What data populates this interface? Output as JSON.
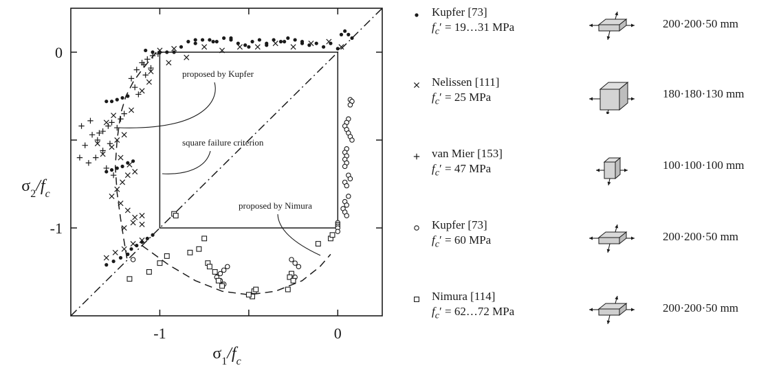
{
  "chart_data": {
    "type": "scatter",
    "title": "",
    "xlabel": "σ1/fc",
    "ylabel": "σ2/fc",
    "xlim": [
      -1.5,
      0.25
    ],
    "ylim": [
      -1.5,
      0.25
    ],
    "xticks": [
      -1,
      0
    ],
    "yticks": [
      -1,
      0
    ],
    "xtick_labels": [
      "-1",
      "0"
    ],
    "ytick_labels": [
      "-1",
      "0"
    ],
    "grid": false,
    "legend_position": "right",
    "annotations": [
      {
        "text": "proposed by Kupfer",
        "target": "kupfer-curve"
      },
      {
        "text": "square failure criterion",
        "target": "square"
      },
      {
        "text": "proposed by Nimura",
        "target": "nimura-curve"
      }
    ],
    "lines": [
      {
        "name": "diagonal",
        "style": "dash-dot",
        "x": [
          -1.5,
          0.25
        ],
        "y": [
          -1.5,
          0.25
        ]
      },
      {
        "name": "square failure criterion",
        "style": "solid",
        "x": [
          -1,
          0,
          0,
          -1,
          -1
        ],
        "y": [
          0,
          0,
          -1,
          -1,
          0
        ]
      },
      {
        "name": "proposed by Kupfer",
        "style": "dashed",
        "x": [
          -1.02,
          -1.06,
          -1.1,
          -1.15,
          -1.19,
          -1.22,
          -1.24,
          -1.25,
          -1.24,
          -1.22,
          -1.2,
          -1.18
        ],
        "y": [
          0.0,
          -0.05,
          -0.1,
          -0.17,
          -0.25,
          -0.35,
          -0.5,
          -0.65,
          -0.8,
          -0.95,
          -1.08,
          -1.2
        ]
      },
      {
        "name": "proposed by Nimura",
        "style": "dashed",
        "x": [
          -1.1,
          -0.95,
          -0.8,
          -0.65,
          -0.5,
          -0.35,
          -0.2,
          -0.1,
          -0.04
        ],
        "y": [
          -1.1,
          -1.21,
          -1.3,
          -1.36,
          -1.38,
          -1.36,
          -1.3,
          -1.22,
          -1.15
        ]
      }
    ],
    "series": [
      {
        "name": "Kupfer [73]",
        "marker": "dot",
        "x": [
          -1.08,
          -1.04,
          -1.0,
          -0.96,
          -0.92,
          -0.88,
          -0.84,
          -0.8,
          -0.76,
          -0.72,
          -0.68,
          -0.64,
          -0.6,
          -0.56,
          -0.52,
          -0.48,
          -0.44,
          -0.4,
          -0.36,
          -0.32,
          -0.28,
          -0.24,
          -0.2,
          -0.16,
          -0.12,
          -0.08,
          -0.04,
          0.0,
          0.02,
          0.04,
          0.06,
          0.08,
          -1.3,
          -1.27,
          -1.24,
          -1.21,
          -1.18,
          -1.3,
          -1.27,
          -1.24,
          -1.21,
          -1.18,
          -1.15,
          -1.3,
          -1.26,
          -1.22,
          -1.18,
          -1.16,
          -1.13,
          -1.1,
          -1.07,
          -1.04,
          -0.8,
          -0.7,
          -0.6,
          -0.4,
          -0.3,
          -0.2,
          -0.5
        ],
        "y": [
          0.01,
          0.0,
          0.0,
          0.0,
          0.0,
          0.03,
          0.06,
          0.07,
          0.07,
          0.07,
          0.06,
          0.08,
          0.08,
          0.05,
          0.04,
          0.06,
          0.07,
          0.05,
          0.07,
          0.06,
          0.08,
          0.07,
          0.06,
          0.04,
          0.05,
          0.03,
          0.05,
          0.02,
          0.1,
          0.12,
          0.1,
          0.08,
          -0.28,
          -0.28,
          -0.27,
          -0.26,
          -0.25,
          -0.68,
          -0.67,
          -0.66,
          -0.65,
          -0.63,
          -0.62,
          -1.21,
          -1.19,
          -1.17,
          -1.15,
          -1.12,
          -1.1,
          -1.08,
          -1.06,
          -1.04,
          0.05,
          0.06,
          0.07,
          0.04,
          0.06,
          0.05,
          0.03
        ]
      },
      {
        "name": "Nelissen [111]",
        "marker": "x",
        "x": [
          -1.35,
          -1.3,
          -1.26,
          -1.24,
          -1.2,
          -1.16,
          -1.1,
          -1.06,
          -1.27,
          -1.24,
          -1.21,
          -1.18,
          -1.22,
          -1.18,
          -1.14,
          -1.1,
          -1.3,
          -1.25,
          -1.2,
          -1.15,
          -1.1,
          -1.2,
          -1.15,
          -1.1,
          -1.32,
          -1.27,
          -1.22,
          -1.17,
          -1.14,
          -1.05,
          -0.95,
          -0.85,
          -0.75,
          -0.65,
          -0.55,
          -0.45,
          -0.35,
          -0.25,
          -0.15,
          -0.05,
          0.02,
          -1.0,
          -0.92
        ],
        "y": [
          -0.52,
          -0.4,
          -0.36,
          -0.5,
          -0.47,
          -0.33,
          -0.22,
          -0.17,
          -0.82,
          -0.78,
          -0.74,
          -0.7,
          -0.86,
          -0.9,
          -0.94,
          -0.98,
          -1.17,
          -1.14,
          -1.12,
          -1.09,
          -1.07,
          -1.0,
          -0.97,
          -0.93,
          -0.58,
          -0.54,
          -0.6,
          -0.64,
          -0.68,
          -0.11,
          -0.06,
          -0.03,
          0.03,
          0.01,
          0.03,
          0.03,
          0.05,
          0.03,
          0.05,
          0.06,
          0.03,
          0.01,
          0.02
        ]
      },
      {
        "name": "van Mier [153]",
        "marker": "plus",
        "x": [
          -1.45,
          -1.42,
          -1.38,
          -1.35,
          -1.32,
          -1.29,
          -1.27,
          -1.24,
          -1.22,
          -1.2,
          -1.4,
          -1.36,
          -1.32,
          -1.28,
          -1.44,
          -1.39,
          -1.34,
          -1.3,
          -1.26,
          -1.13,
          -1.1,
          -1.07,
          -1.04,
          -1.01,
          -1.16,
          -1.05,
          -1.08,
          -1.14,
          -1.12,
          -1.09
        ],
        "y": [
          -0.6,
          -0.53,
          -0.47,
          -0.5,
          -0.45,
          -0.42,
          -0.4,
          -0.43,
          -0.38,
          -0.35,
          -0.63,
          -0.6,
          -0.56,
          -0.52,
          -0.42,
          -0.39,
          -0.46,
          -0.66,
          -0.7,
          -0.1,
          -0.06,
          -0.04,
          -0.02,
          -0.01,
          -0.15,
          -0.09,
          -0.13,
          -0.2,
          -0.24,
          -0.07
        ]
      },
      {
        "name": "Kupfer [73]",
        "marker": "circle",
        "x": [
          0.07,
          0.08,
          0.07,
          0.06,
          0.05,
          0.04,
          0.05,
          0.06,
          0.07,
          0.08,
          0.05,
          0.04,
          0.05,
          0.04,
          0.05,
          0.04,
          0.06,
          0.07,
          0.04,
          0.05,
          0.06,
          0.04,
          0.05,
          0.03,
          0.04,
          0.05,
          0.0,
          0.0,
          0.0,
          0.0,
          0.0,
          -0.68,
          -0.66,
          -0.64,
          -0.62,
          -0.66,
          -0.64,
          -0.26,
          -0.24,
          -0.22,
          -0.26,
          -0.24,
          -1.15
        ],
        "y": [
          -0.27,
          -0.28,
          -0.3,
          -0.38,
          -0.4,
          -0.42,
          -0.44,
          -0.46,
          -0.48,
          -0.5,
          -0.55,
          -0.57,
          -0.59,
          -0.61,
          -0.63,
          -0.65,
          -0.7,
          -0.72,
          -0.74,
          -0.76,
          -0.82,
          -0.85,
          -0.87,
          -0.89,
          -0.91,
          -0.93,
          -0.97,
          -0.98,
          -0.99,
          -1.0,
          -1.02,
          -1.28,
          -1.26,
          -1.24,
          -1.22,
          -1.3,
          -1.32,
          -1.18,
          -1.2,
          -1.22,
          -1.26,
          -1.28,
          -1.18
        ]
      },
      {
        "name": "Nimura [114]",
        "marker": "square",
        "x": [
          -0.92,
          -0.91,
          -0.83,
          -0.78,
          -0.75,
          -0.73,
          -0.72,
          -0.69,
          -0.67,
          -0.65,
          -1.17,
          -1.06,
          -1.0,
          -0.96,
          -0.47,
          -0.48,
          -0.46,
          -0.5,
          -0.26,
          -0.27,
          -0.25,
          -0.28,
          -0.11,
          -0.04,
          -0.03
        ],
        "y": [
          -0.92,
          -0.93,
          -1.14,
          -1.12,
          -1.06,
          -1.2,
          -1.22,
          -1.25,
          -1.3,
          -1.33,
          -1.29,
          -1.25,
          -1.2,
          -1.16,
          -1.36,
          -1.39,
          -1.35,
          -1.38,
          -1.26,
          -1.28,
          -1.3,
          -1.35,
          -1.09,
          -1.06,
          -1.04
        ]
      }
    ]
  },
  "legend": [
    {
      "symbol": "•",
      "name": "Kupfer [73]",
      "strength_var": "f",
      "strength_sub": "c",
      "strength_value": "= 19…31 MPa",
      "size": "200·200·50 mm",
      "specimen": "plate"
    },
    {
      "symbol": "×",
      "name": "Nelissen [111]",
      "strength_var": "f",
      "strength_sub": "c",
      "strength_value": "= 25 MPa",
      "size": "180·180·130 mm",
      "specimen": "block"
    },
    {
      "symbol": "+",
      "name": "van Mier [153]",
      "strength_var": "f",
      "strength_sub": "c",
      "strength_value": "= 47 MPa",
      "size": "100·100·100 mm",
      "specimen": "cube"
    },
    {
      "symbol": "○",
      "name": "Kupfer [73]",
      "strength_var": "f",
      "strength_sub": "c",
      "strength_value": "= 60 MPa",
      "size": "200·200·50 mm",
      "specimen": "plate"
    },
    {
      "symbol": "□",
      "name": "Nimura [114]",
      "strength_var": "f",
      "strength_sub": "c",
      "strength_value": "= 62…72 MPa",
      "size": "200·200·50 mm",
      "specimen": "plate"
    }
  ],
  "colors": {
    "ink": "#1a1a1a",
    "background": "#ffffff"
  }
}
